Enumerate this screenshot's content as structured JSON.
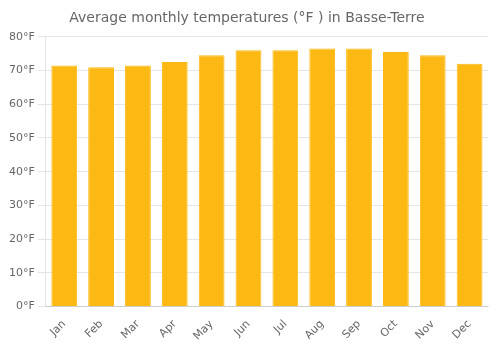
{
  "chart_data": {
    "type": "bar",
    "title": "Average monthly temperatures (°F ) in Basse-Terre",
    "categories": [
      "Jan",
      "Feb",
      "Mar",
      "Apr",
      "May",
      "Jun",
      "Jul",
      "Aug",
      "Sep",
      "Oct",
      "Nov",
      "Dec"
    ],
    "values": [
      71.5,
      71.0,
      71.5,
      72.5,
      74.5,
      76.0,
      76.0,
      76.5,
      76.5,
      75.5,
      74.5,
      72.0
    ],
    "color": "#FDB913",
    "ylim": [
      0,
      80
    ],
    "yticks": [
      {
        "value": 0,
        "label": "0°F"
      },
      {
        "value": 10,
        "label": "10°F"
      },
      {
        "value": 20,
        "label": "20°F"
      },
      {
        "value": 30,
        "label": "30°F"
      },
      {
        "value": 40,
        "label": "40°F"
      },
      {
        "value": 50,
        "label": "50°F"
      },
      {
        "value": 60,
        "label": "60°F"
      },
      {
        "value": 70,
        "label": "70°F"
      },
      {
        "value": 80,
        "label": "80°F"
      }
    ],
    "grid": true
  }
}
